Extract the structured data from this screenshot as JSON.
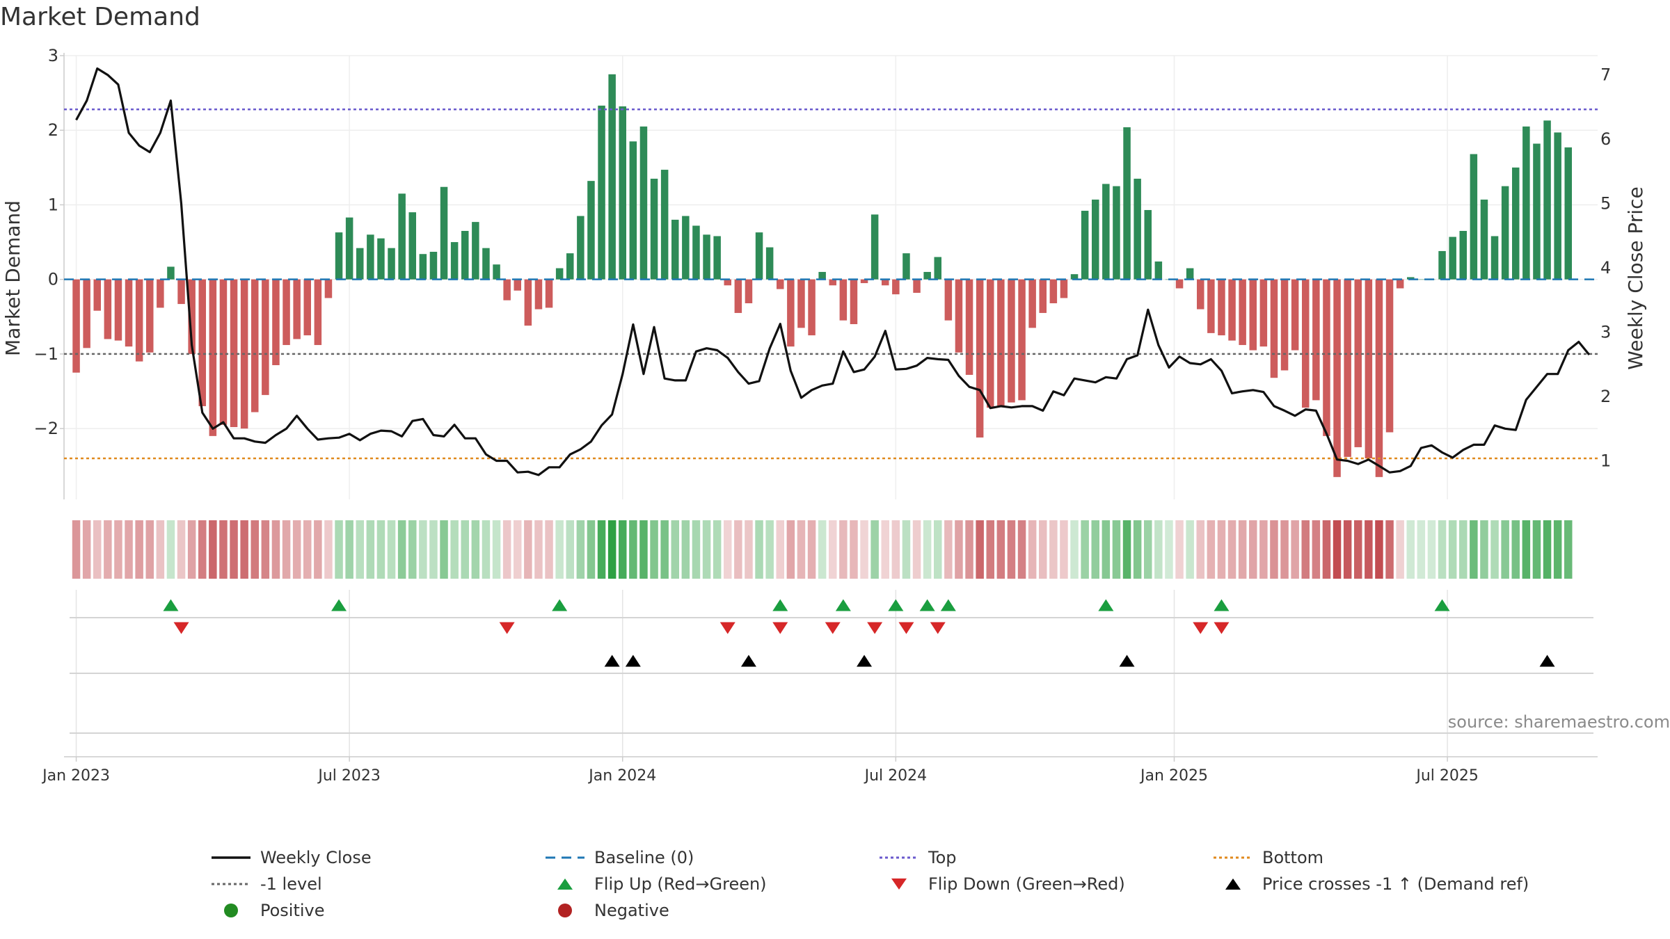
{
  "title": "Market Demand",
  "source": "source: sharemaestro.com",
  "colors": {
    "positive_bar": "#2e8b57",
    "negative_bar": "#cd5c5c",
    "price": "#111111",
    "baseline": "#1f77b4",
    "top": "#6a5acd",
    "bottom": "#e08a1e",
    "minus1": "#666666",
    "flip_up": "#1a9e3f",
    "flip_down": "#d62728",
    "cross": "#000000",
    "positive_dot": "#228b22",
    "negative_dot": "#b22222"
  },
  "chart_data": {
    "type": "bar",
    "title": "Market Demand",
    "ylabel": "Market Demand",
    "y2label": "Weekly Close Price",
    "ylim": [
      -2.95,
      3.0
    ],
    "y2lim": [
      0.4,
      7.3
    ],
    "yticks": [
      3,
      2,
      1,
      0,
      -1,
      -2
    ],
    "ytick_labels": [
      "3",
      "2",
      "1",
      "0",
      "−1",
      "−2"
    ],
    "y2ticks": [
      7,
      6,
      5,
      4,
      3,
      2,
      1
    ],
    "y2tick_labels": [
      "7",
      "6",
      "5",
      "4",
      "3",
      "2",
      "1"
    ],
    "xticks": [
      {
        "week": 1,
        "label": "Jan 2023"
      },
      {
        "week": 27,
        "label": "Jul 2023"
      },
      {
        "week": 53,
        "label": "Jan 2024"
      },
      {
        "week": 79,
        "label": "Jul 2024"
      },
      {
        "week": 105.5,
        "label": "Jan 2025"
      },
      {
        "week": 131.5,
        "label": "Jul 2025"
      }
    ],
    "reference_lines": {
      "baseline": 0,
      "minus_one": -1,
      "top": 2.28,
      "bottom": -2.4
    },
    "demand": [
      -1.25,
      -0.92,
      -0.42,
      -0.8,
      -0.82,
      -0.9,
      -1.1,
      -0.98,
      -0.38,
      0.17,
      -0.33,
      -1.0,
      -1.7,
      -2.1,
      -1.95,
      -1.98,
      -2.0,
      -1.78,
      -1.55,
      -1.15,
      -0.88,
      -0.8,
      -0.75,
      -0.88,
      -0.25,
      0.63,
      0.83,
      0.42,
      0.6,
      0.55,
      0.42,
      1.15,
      0.9,
      0.34,
      0.37,
      1.24,
      0.5,
      0.65,
      0.77,
      0.42,
      0.2,
      -0.28,
      -0.15,
      -0.62,
      -0.4,
      -0.38,
      0.15,
      0.35,
      0.85,
      1.32,
      2.33,
      2.75,
      2.32,
      1.85,
      2.05,
      1.35,
      1.47,
      0.8,
      0.85,
      0.72,
      0.6,
      0.58,
      -0.08,
      -0.45,
      -0.32,
      0.63,
      0.43,
      -0.13,
      -0.9,
      -0.65,
      -0.75,
      0.1,
      -0.08,
      -0.55,
      -0.6,
      -0.05,
      0.87,
      -0.08,
      -0.2,
      0.35,
      -0.18,
      0.1,
      0.3,
      -0.55,
      -0.98,
      -1.28,
      -2.12,
      -1.72,
      -1.7,
      -1.65,
      -1.62,
      -0.65,
      -0.45,
      -0.32,
      -0.25,
      0.07,
      0.92,
      1.07,
      1.28,
      1.25,
      2.04,
      1.35,
      0.93,
      0.24,
      0.0,
      -0.12,
      0.15,
      -0.4,
      -0.72,
      -0.75,
      -0.82,
      -0.88,
      -0.95,
      -0.9,
      -1.32,
      -1.22,
      -0.95,
      -1.72,
      -1.62,
      -2.1,
      -2.65,
      -2.38,
      -2.25,
      -2.4,
      -2.65,
      -2.05,
      -0.12,
      0.03,
      0.0,
      0.0,
      0.38,
      0.57,
      0.65,
      1.68,
      1.07,
      0.58,
      1.25,
      1.5,
      2.05,
      1.82,
      2.13,
      1.97,
      1.77
    ],
    "price": [
      6.3,
      6.6,
      7.1,
      7.0,
      6.85,
      6.1,
      5.9,
      5.8,
      6.1,
      6.6,
      5.0,
      2.8,
      1.75,
      1.5,
      1.6,
      1.35,
      1.35,
      1.3,
      1.28,
      1.4,
      1.5,
      1.7,
      1.5,
      1.33,
      1.35,
      1.36,
      1.42,
      1.32,
      1.42,
      1.47,
      1.46,
      1.38,
      1.62,
      1.65,
      1.4,
      1.38,
      1.56,
      1.35,
      1.35,
      1.1,
      1.0,
      1.0,
      0.82,
      0.83,
      0.78,
      0.9,
      0.9,
      1.1,
      1.18,
      1.3,
      1.55,
      1.72,
      2.35,
      3.12,
      2.35,
      3.08,
      2.28,
      2.25,
      2.25,
      2.7,
      2.75,
      2.72,
      2.6,
      2.38,
      2.2,
      2.24,
      2.75,
      3.13,
      2.4,
      1.98,
      2.1,
      2.17,
      2.2,
      2.7,
      2.38,
      2.42,
      2.62,
      3.02,
      2.42,
      2.43,
      2.48,
      2.6,
      2.58,
      2.57,
      2.32,
      2.15,
      2.1,
      1.82,
      1.85,
      1.83,
      1.85,
      1.85,
      1.78,
      2.08,
      2.02,
      2.28,
      2.25,
      2.22,
      2.3,
      2.28,
      2.58,
      2.64,
      3.35,
      2.8,
      2.45,
      2.62,
      2.52,
      2.5,
      2.58,
      2.4,
      2.05,
      2.08,
      2.1,
      2.07,
      1.85,
      1.78,
      1.7,
      1.8,
      1.78,
      1.42,
      1.02,
      1.0,
      0.95,
      1.02,
      0.92,
      0.82,
      0.84,
      0.92,
      1.2,
      1.24,
      1.13,
      1.05,
      1.17,
      1.25,
      1.25,
      1.55,
      1.5,
      1.48,
      1.95,
      2.15,
      2.35,
      2.35,
      2.72,
      2.85,
      2.65
    ],
    "flip_up": [
      10,
      26,
      47,
      68,
      74,
      79,
      82,
      84,
      99,
      110,
      131
    ],
    "flip_down": [
      11,
      42,
      63,
      68,
      73,
      77,
      80,
      83,
      108,
      110
    ],
    "price_crosses": [
      52,
      54,
      65,
      76,
      101,
      141
    ],
    "legend": [
      {
        "label": "Weekly Close",
        "symbol": "solid-line",
        "color_key": "price"
      },
      {
        "label": "Baseline (0)",
        "symbol": "dash-line",
        "color_key": "baseline"
      },
      {
        "label": "Top",
        "symbol": "dot-line",
        "color_key": "top"
      },
      {
        "label": "Bottom",
        "symbol": "dot-line",
        "color_key": "bottom"
      },
      {
        "label": "-1 level",
        "symbol": "dot-line",
        "color_key": "minus1"
      },
      {
        "label": "Flip Up (Red→Green)",
        "symbol": "triangle-up",
        "color_key": "flip_up"
      },
      {
        "label": "Flip Down (Green→Red)",
        "symbol": "triangle-down",
        "color_key": "flip_down"
      },
      {
        "label": "Price crosses -1 ↑ (Demand ref)",
        "symbol": "triangle-up",
        "color_key": "cross"
      },
      {
        "label": "Positive",
        "symbol": "circle",
        "color_key": "positive_dot"
      },
      {
        "label": "Negative",
        "symbol": "circle",
        "color_key": "negative_dot"
      }
    ]
  }
}
